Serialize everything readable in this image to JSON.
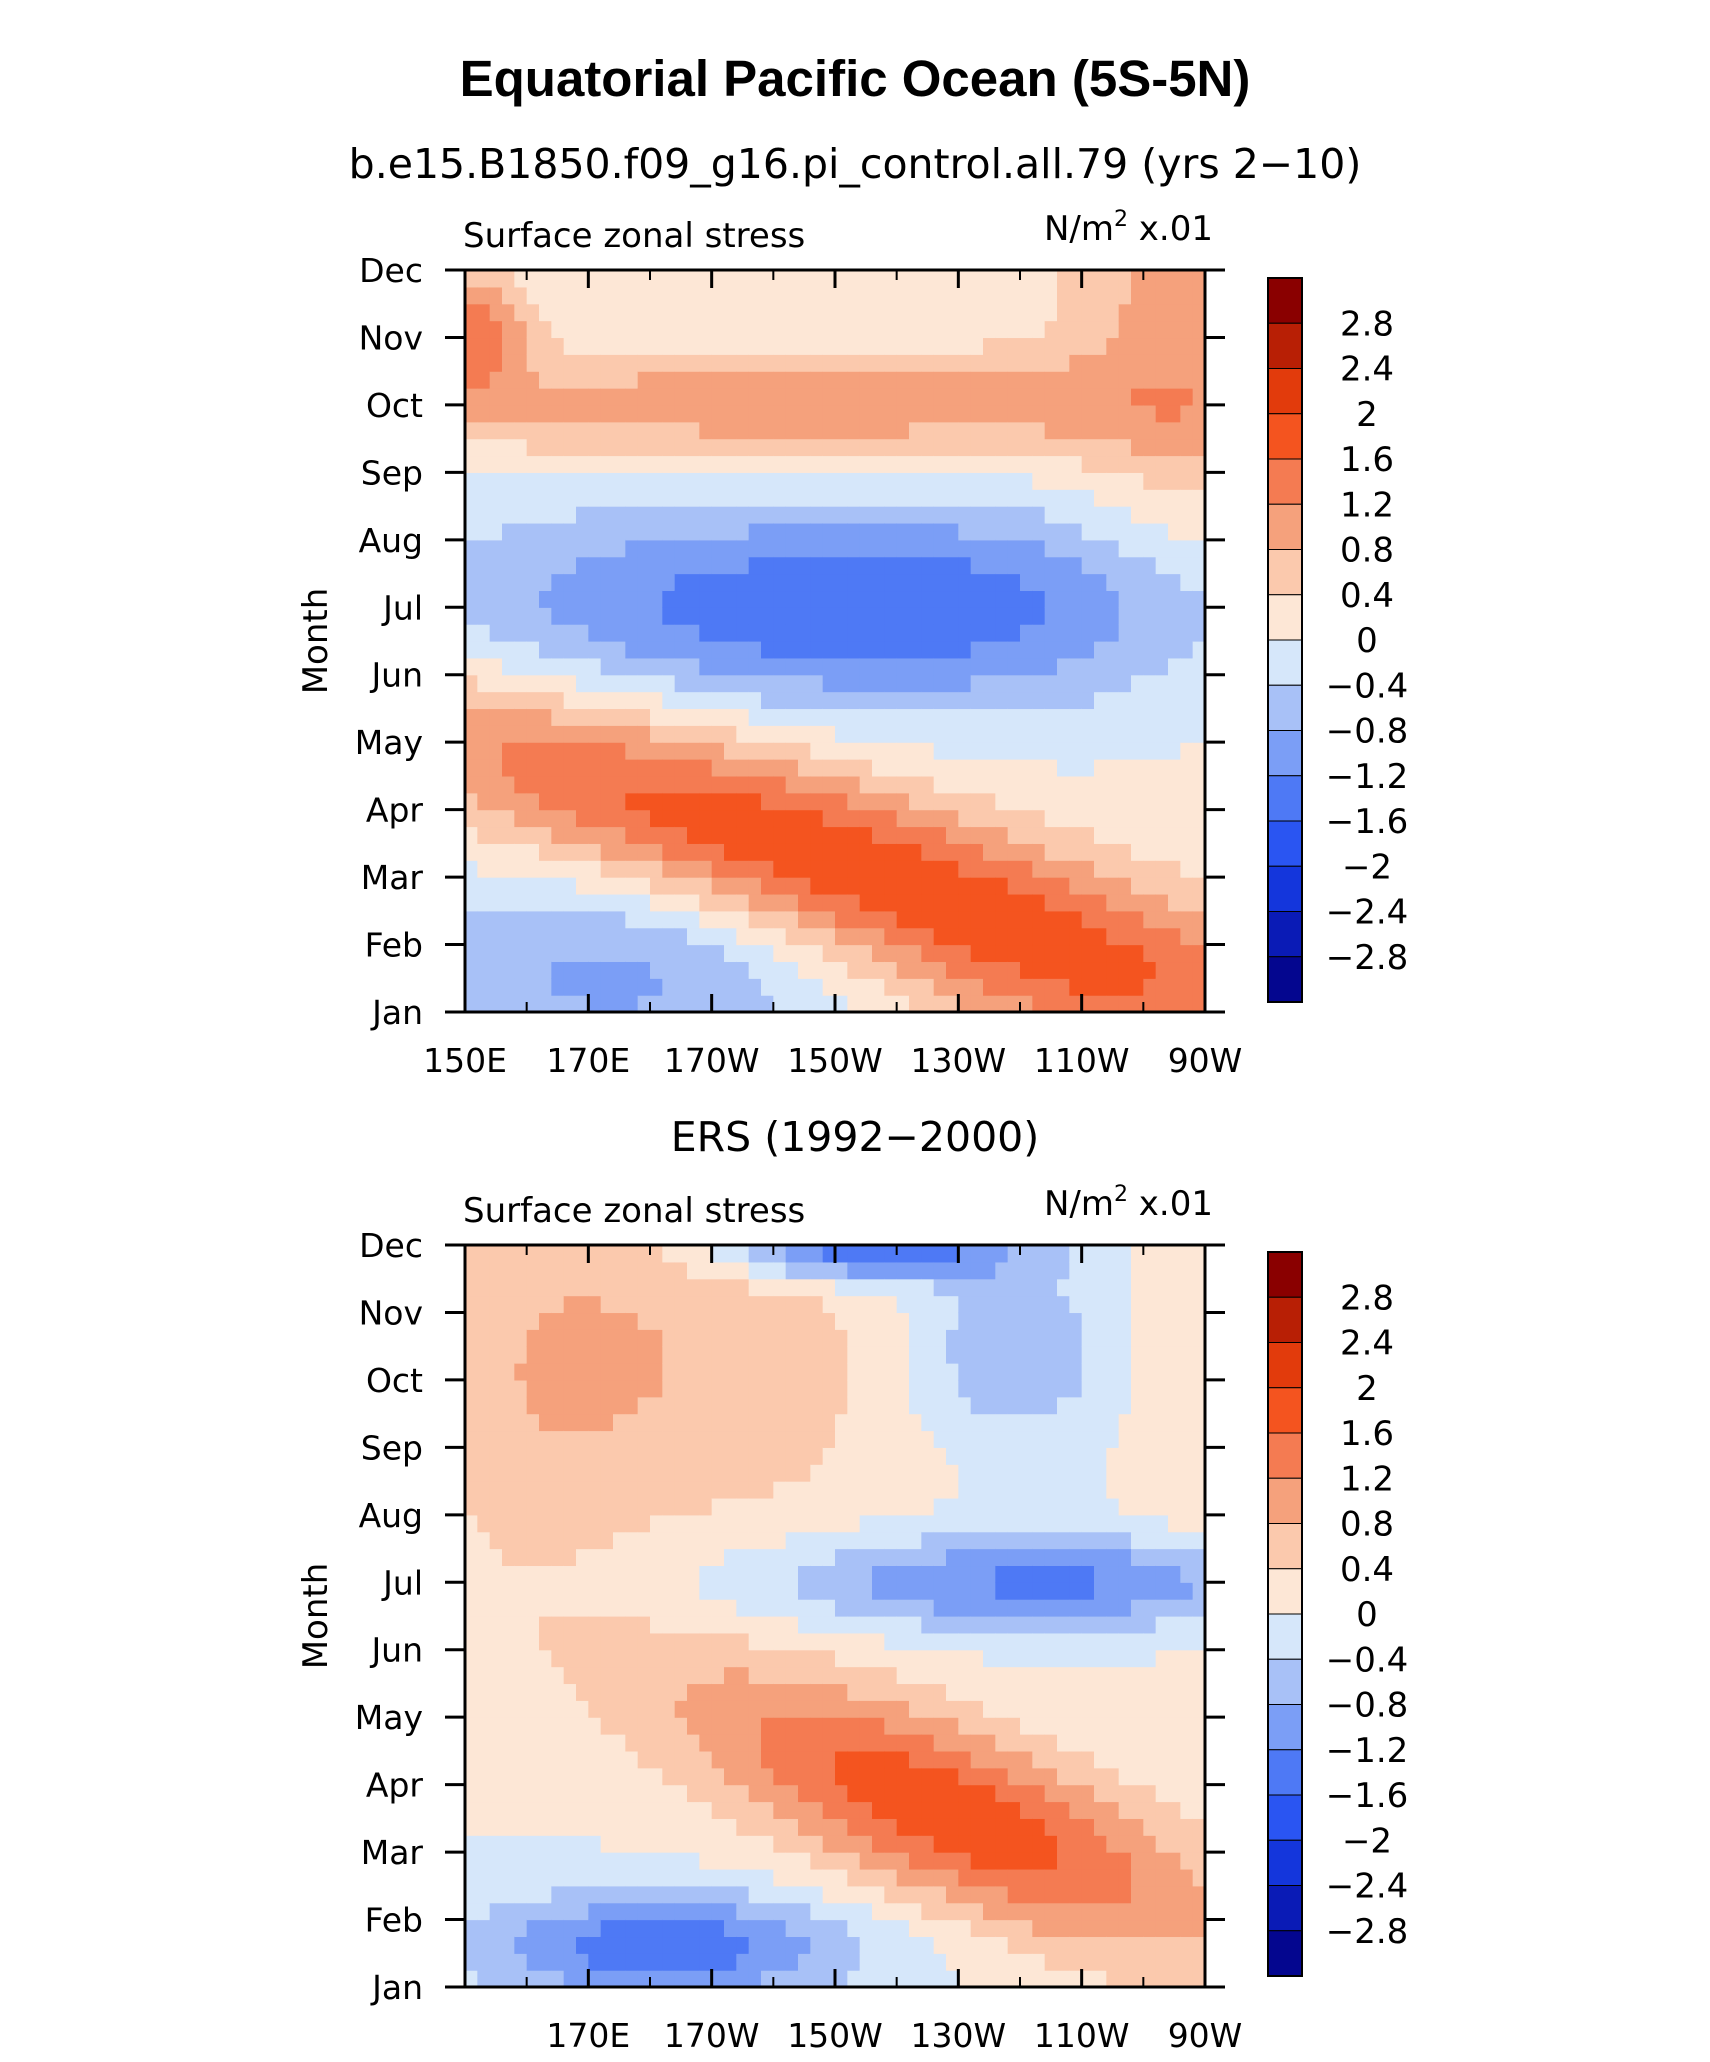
{
  "title": "Equatorial Pacific Ocean (5S-5N)",
  "chart_data": [
    {
      "type": "heatmap",
      "title": "b.e15.B1850.f09_g16.pi_control.all.79 (yrs 2−10)",
      "left_label": "Surface zonal stress",
      "right_label": "N/m",
      "unit_exponent": "2",
      "unit_suffix": " x.01",
      "ylabel": "Month",
      "x_labels": [
        "150E",
        "170E",
        "170W",
        "150W",
        "130W",
        "110W",
        "90W"
      ],
      "x_values": [
        150,
        170,
        190,
        210,
        230,
        250,
        270
      ],
      "y_labels": [
        "Jan",
        "Feb",
        "Mar",
        "Apr",
        "May",
        "Jun",
        "Jul",
        "Aug",
        "Sep",
        "Oct",
        "Nov",
        "Dec"
      ],
      "xlim": [
        150,
        270
      ],
      "ylim": [
        1,
        12
      ],
      "colorbar_labels": [
        "2.8",
        "2.4",
        "2",
        "1.6",
        "1.2",
        "0.8",
        "0.4",
        "0",
        "−0.4",
        "−0.8",
        "−1.2",
        "−1.6",
        "−2",
        "−2.4",
        "−2.8"
      ],
      "levels": [
        -2.8,
        -2.4,
        -2,
        -1.6,
        -1.2,
        -0.8,
        -0.4,
        0,
        0.4,
        0.8,
        1.2,
        1.6,
        2,
        2.4,
        2.8
      ],
      "features": [
        {
          "lon": 210,
          "month": 3.2,
          "amp": 2.0,
          "slon": 58,
          "smon": 1.0,
          "tilt": -0.03
        },
        {
          "lon": 205,
          "month": 10.0,
          "amp": 1.1,
          "slon": 55,
          "smon": 0.6,
          "tilt": 0
        },
        {
          "lon": 214,
          "month": 7.0,
          "amp": -1.55,
          "slon": 48,
          "smon": 1.05,
          "tilt": 0
        },
        {
          "lon": 175,
          "month": 1.6,
          "amp": -0.9,
          "slon": 26,
          "smon": 1.1,
          "tilt": 0
        },
        {
          "lon": 152,
          "month": 11.1,
          "amp": 1.4,
          "slon": 6,
          "smon": 0.6,
          "tilt": 0
        },
        {
          "lon": 268,
          "month": 9.5,
          "amp": 0.6,
          "slon": 14,
          "smon": 2.5,
          "tilt": 0
        },
        {
          "lon": 250,
          "month": 1.2,
          "amp": 0.35,
          "slon": 20,
          "smon": 0.8,
          "tilt": 0
        },
        {
          "lon": 262,
          "month": 11.8,
          "amp": 0.5,
          "slon": 14,
          "smon": 0.9,
          "tilt": 0
        }
      ]
    },
    {
      "type": "heatmap",
      "title": "ERS (1992−2000)",
      "left_label": "Surface zonal stress",
      "right_label": "N/m",
      "unit_exponent": "2",
      "unit_suffix": " x.01",
      "ylabel": "Month",
      "x_labels": [
        "170E",
        "170W",
        "150W",
        "130W",
        "110W",
        "90W"
      ],
      "x_values": [
        170,
        190,
        210,
        230,
        250,
        270
      ],
      "y_labels": [
        "Jan",
        "Feb",
        "Mar",
        "Apr",
        "May",
        "Jun",
        "Jul",
        "Aug",
        "Sep",
        "Oct",
        "Nov",
        "Dec"
      ],
      "xlim": [
        150,
        270
      ],
      "ylim": [
        1,
        12
      ],
      "colorbar_labels": [
        "2.8",
        "2.4",
        "2",
        "1.6",
        "1.2",
        "0.8",
        "0.4",
        "0",
        "−0.4",
        "−0.8",
        "−1.2",
        "−1.6",
        "−2",
        "−2.4",
        "−2.8"
      ],
      "levels": [
        -2.8,
        -2.4,
        -2,
        -1.6,
        -1.2,
        -0.8,
        -0.4,
        0,
        0.4,
        0.8,
        1.2,
        1.6,
        2,
        2.4,
        2.8
      ],
      "features": [
        {
          "lon": 228,
          "month": 3.6,
          "amp": 1.9,
          "slon": 32,
          "smon": 1.0,
          "tilt": -0.035
        },
        {
          "lon": 244,
          "month": 7.0,
          "amp": -1.3,
          "slon": 34,
          "smon": 0.5,
          "tilt": 0
        },
        {
          "lon": 182,
          "month": 1.6,
          "amp": -1.5,
          "slon": 22,
          "smon": 0.55,
          "tilt": 0
        },
        {
          "lon": 215,
          "month": 11.9,
          "amp": -1.8,
          "slon": 16,
          "smon": 0.3,
          "tilt": 0
        },
        {
          "lon": 238,
          "month": 10.4,
          "amp": -0.8,
          "slon": 12,
          "smon": 1.0,
          "tilt": 0
        },
        {
          "lon": 190,
          "month": 10.3,
          "amp": 0.7,
          "slon": 24,
          "smon": 2.0,
          "tilt": 0
        },
        {
          "lon": 160,
          "month": 10.0,
          "amp": 0.5,
          "slon": 14,
          "smon": 2.5,
          "tilt": 0
        },
        {
          "lon": 268,
          "month": 9.5,
          "amp": 0.35,
          "slon": 8,
          "smon": 2.5,
          "tilt": 0
        }
      ]
    }
  ]
}
